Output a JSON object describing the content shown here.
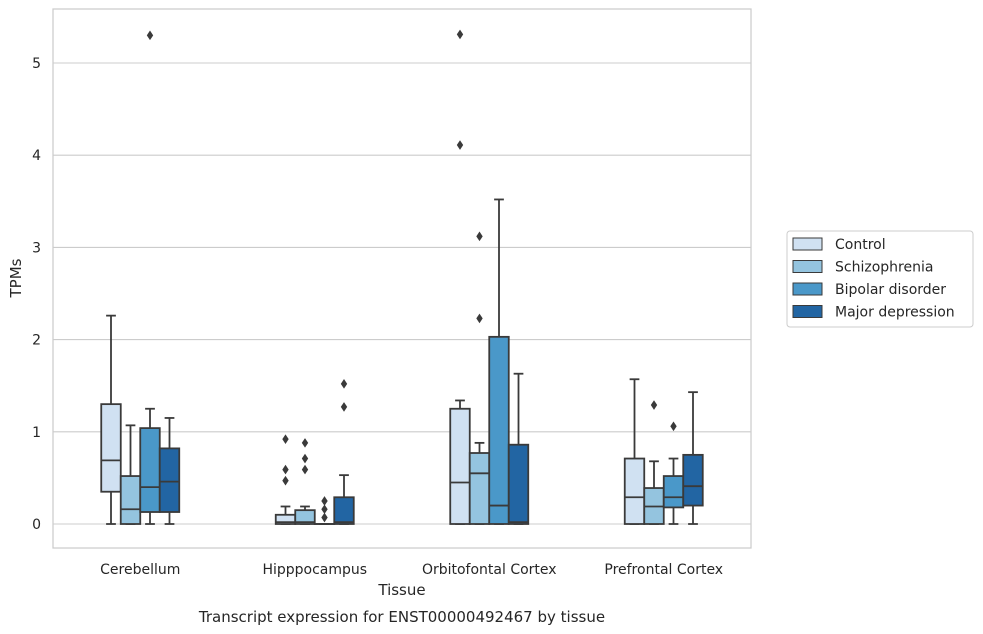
{
  "chart_data": {
    "type": "box",
    "caption": "Transcript expression for ENST00000492467 by tissue",
    "xlabel": "Tissue",
    "ylabel": "TPMs",
    "ylim": [
      -0.26,
      5.6
    ],
    "yticks": [
      0,
      1,
      2,
      3,
      4,
      5
    ],
    "grid": true,
    "legend_placement": "right",
    "categories": [
      "Cerebellum",
      "Hipppocampus",
      "Orbitofontal Cortex",
      "Prefrontal Cortex"
    ],
    "series": [
      {
        "name": "Control",
        "color": "#d0e1f2",
        "boxes": [
          {
            "whislo": 0,
            "q1": 0.35,
            "med": 0.69,
            "q3": 1.3,
            "whishi": 2.26,
            "fliers": []
          },
          {
            "whislo": 0,
            "q1": 0,
            "med": 0.02,
            "q3": 0.1,
            "whishi": 0.19,
            "fliers": [
              0.92,
              0.59,
              0.47
            ]
          },
          {
            "whislo": 0,
            "q1": 0,
            "med": 0.45,
            "q3": 1.25,
            "whishi": 1.34,
            "fliers": [
              5.31,
              4.11
            ]
          },
          {
            "whislo": 0,
            "q1": 0,
            "med": 0.29,
            "q3": 0.71,
            "whishi": 1.57,
            "fliers": []
          }
        ]
      },
      {
        "name": "Schizophrenia",
        "color": "#94c4df",
        "boxes": [
          {
            "whislo": 0,
            "q1": 0,
            "med": 0.16,
            "q3": 0.52,
            "whishi": 1.07,
            "fliers": []
          },
          {
            "whislo": 0,
            "q1": 0,
            "med": 0.02,
            "q3": 0.15,
            "whishi": 0.19,
            "fliers": [
              0.88,
              0.71,
              0.59
            ]
          },
          {
            "whislo": 0,
            "q1": 0,
            "med": 0.55,
            "q3": 0.77,
            "whishi": 0.88,
            "fliers": [
              3.12,
              2.23
            ]
          },
          {
            "whislo": 0,
            "q1": 0,
            "med": 0.19,
            "q3": 0.39,
            "whishi": 0.68,
            "fliers": [
              1.29
            ]
          }
        ]
      },
      {
        "name": "Bipolar disorder",
        "color": "#4a98c9",
        "boxes": [
          {
            "whislo": 0,
            "q1": 0.13,
            "med": 0.4,
            "q3": 1.04,
            "whishi": 1.25,
            "fliers": [
              5.3
            ]
          },
          {
            "whislo": 0,
            "q1": 0,
            "med": 0,
            "q3": 0,
            "whishi": 0,
            "fliers": [
              0.25,
              0.16,
              0.07
            ]
          },
          {
            "whislo": 0,
            "q1": 0,
            "med": 0.2,
            "q3": 2.03,
            "whishi": 3.52,
            "fliers": []
          },
          {
            "whislo": 0,
            "q1": 0.18,
            "med": 0.29,
            "q3": 0.52,
            "whishi": 0.71,
            "fliers": [
              1.06
            ]
          }
        ]
      },
      {
        "name": "Major depression",
        "color": "#2265a3",
        "boxes": [
          {
            "whislo": 0,
            "q1": 0.13,
            "med": 0.46,
            "q3": 0.82,
            "whishi": 1.15,
            "fliers": []
          },
          {
            "whislo": 0,
            "q1": 0,
            "med": 0.02,
            "q3": 0.29,
            "whishi": 0.53,
            "fliers": [
              1.52,
              1.27
            ]
          },
          {
            "whislo": 0,
            "q1": 0,
            "med": 0.02,
            "q3": 0.86,
            "whishi": 1.63,
            "fliers": []
          },
          {
            "whislo": 0,
            "q1": 0.2,
            "med": 0.41,
            "q3": 0.75,
            "whishi": 1.43,
            "fliers": []
          }
        ]
      }
    ]
  }
}
